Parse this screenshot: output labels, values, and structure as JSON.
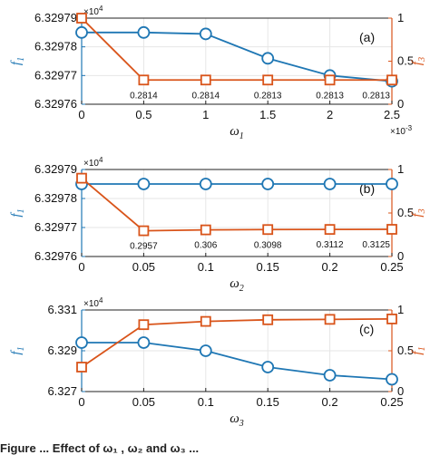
{
  "colors": {
    "blue": "#1f77b4",
    "orange": "#d9541a",
    "grid": "#e6e6e6",
    "axis": "#222222"
  },
  "caption": "Figure ... Effect of ω₁ , ω₂ and ω₃ ...",
  "chart_data": [
    {
      "type": "line",
      "panel_label": "(a)",
      "xlabel": "ω1",
      "x_exponent_label": "×10",
      "x_exponent_power": "-3",
      "y_left_label": "f1",
      "y_right_label": "f3",
      "y_left_exponent_label": "×10",
      "y_left_exponent_power": "4",
      "x": [
        0,
        0.5,
        1,
        1.5,
        2,
        2.5
      ],
      "x_tick_labels": [
        "0",
        "0.5",
        "1",
        "1.5",
        "2",
        "2.5"
      ],
      "xlim": [
        0,
        2.5
      ],
      "ylim_left": [
        6.32976,
        6.32979
      ],
      "y_left_tick_values": [
        6.32976,
        6.32977,
        6.32978,
        6.32979
      ],
      "y_left_tick_labels": [
        "6.32976",
        "6.32977",
        "6.32978",
        "6.32979"
      ],
      "ylim_right": [
        0,
        1
      ],
      "y_right_tick_values": [
        0,
        0.5,
        1
      ],
      "y_right_tick_labels": [
        "0",
        "0.5",
        "1"
      ],
      "grid": true,
      "series": [
        {
          "axis": "left",
          "marker": "circle",
          "values": [
            6.329785,
            6.329785,
            6.3297845,
            6.329776,
            6.32977,
            6.329768
          ]
        },
        {
          "axis": "right",
          "marker": "square",
          "values": [
            1.0,
            0.2814,
            0.2814,
            0.2813,
            0.2813,
            0.2813
          ]
        }
      ],
      "data_labels": [
        {
          "x": 0.5,
          "text": "0.2814"
        },
        {
          "x": 1,
          "text": "0.2814"
        },
        {
          "x": 1.5,
          "text": "0.2813"
        },
        {
          "x": 2,
          "text": "0.2813"
        },
        {
          "x": 2.5,
          "text": "0.2813"
        }
      ]
    },
    {
      "type": "line",
      "panel_label": "(b)",
      "xlabel": "ω2",
      "y_left_label": "f1",
      "y_right_label": "f3",
      "y_left_exponent_label": "×10",
      "y_left_exponent_power": "4",
      "x": [
        0,
        0.05,
        0.1,
        0.15,
        0.2,
        0.25
      ],
      "x_tick_labels": [
        "0",
        "0.05",
        "0.1",
        "0.15",
        "0.2",
        "0.25"
      ],
      "xlim": [
        0,
        0.25
      ],
      "ylim_left": [
        6.32976,
        6.32979
      ],
      "y_left_tick_values": [
        6.32976,
        6.32977,
        6.32978,
        6.32979
      ],
      "y_left_tick_labels": [
        "6.32976",
        "6.32977",
        "6.32978",
        "6.32979"
      ],
      "ylim_right": [
        0,
        1
      ],
      "y_right_tick_values": [
        0,
        0.5,
        1
      ],
      "y_right_tick_labels": [
        "0",
        "0.5",
        "1"
      ],
      "grid": true,
      "series": [
        {
          "axis": "left",
          "marker": "circle",
          "values": [
            6.329785,
            6.329785,
            6.329785,
            6.329785,
            6.329785,
            6.329785
          ]
        },
        {
          "axis": "right",
          "marker": "square",
          "values": [
            0.9,
            0.2957,
            0.306,
            0.3098,
            0.3112,
            0.3125
          ]
        }
      ],
      "data_labels": [
        {
          "x": 0.05,
          "text": "0.2957"
        },
        {
          "x": 0.1,
          "text": "0.306"
        },
        {
          "x": 0.15,
          "text": "0.3098"
        },
        {
          "x": 0.2,
          "text": "0.3112"
        },
        {
          "x": 0.25,
          "text": "0.3125"
        }
      ]
    },
    {
      "type": "line",
      "panel_label": "(c)",
      "xlabel": "ω3",
      "y_left_label": "f1",
      "y_right_label": "f1",
      "y_left_exponent_label": "×10",
      "y_left_exponent_power": "4",
      "x": [
        0,
        0.05,
        0.1,
        0.15,
        0.2,
        0.25
      ],
      "x_tick_labels": [
        "0",
        "0.05",
        "0.1",
        "0.15",
        "0.2",
        "0.25"
      ],
      "xlim": [
        0,
        0.25
      ],
      "ylim_left": [
        6.327,
        6.331
      ],
      "y_left_tick_values": [
        6.327,
        6.329,
        6.331
      ],
      "y_left_tick_labels": [
        "6.327",
        "6.329",
        "6.331"
      ],
      "ylim_right": [
        0,
        1
      ],
      "y_right_tick_values": [
        0,
        0.5,
        1
      ],
      "y_right_tick_labels": [
        "0",
        "0.5",
        "1"
      ],
      "grid": true,
      "series": [
        {
          "axis": "left",
          "marker": "circle",
          "values": [
            6.3294,
            6.3294,
            6.329,
            6.3282,
            6.3278,
            6.3276
          ]
        },
        {
          "axis": "right",
          "marker": "square",
          "values": [
            0.3,
            0.82,
            0.86,
            0.88,
            0.885,
            0.89
          ]
        }
      ],
      "data_labels": []
    }
  ]
}
